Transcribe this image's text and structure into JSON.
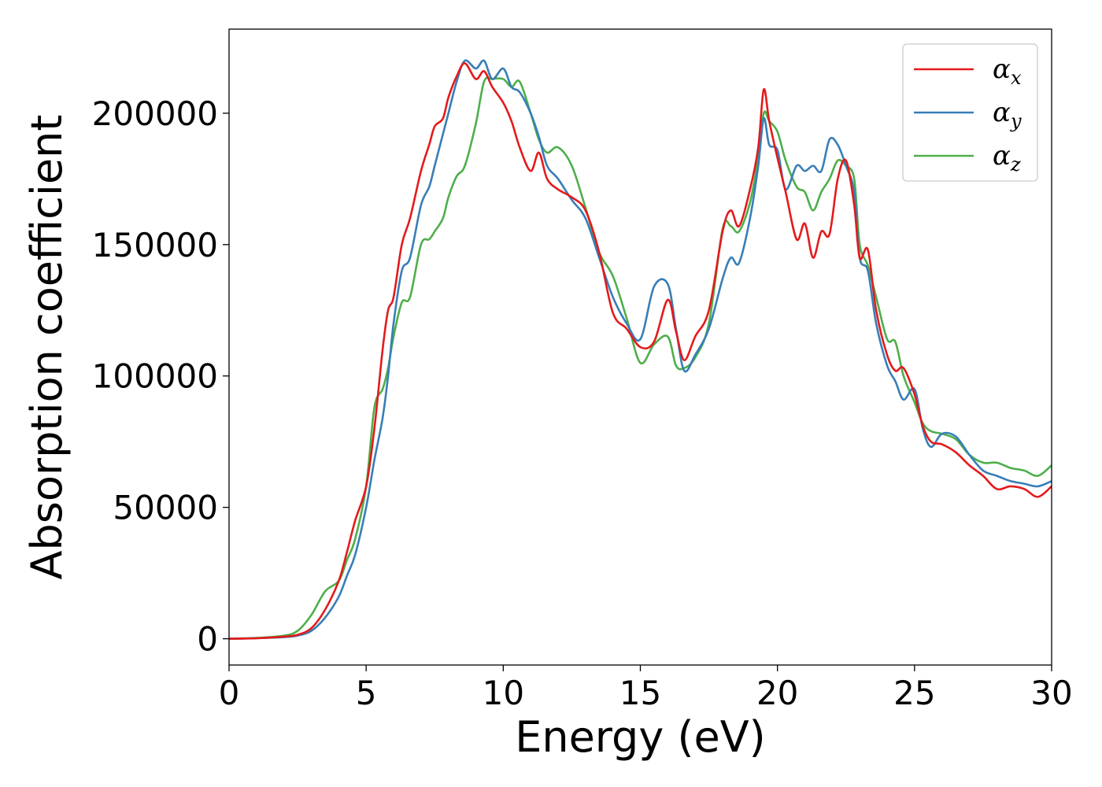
{
  "chart_data": {
    "type": "line",
    "title": "",
    "xlabel": "Energy (eV)",
    "ylabel": "Absorption coefficient",
    "xlim": [
      0,
      30
    ],
    "ylim": [
      -10000,
      232000
    ],
    "xticks": [
      0,
      5,
      10,
      15,
      20,
      25,
      30
    ],
    "xtick_labels": [
      "0",
      "5",
      "10",
      "15",
      "20",
      "25",
      "30"
    ],
    "yticks": [
      0,
      50000,
      100000,
      150000,
      200000
    ],
    "ytick_labels": [
      "0",
      "50000",
      "100000",
      "150000",
      "200000"
    ],
    "grid": false,
    "legend_position": "top-right",
    "series": [
      {
        "name": "αx",
        "symbol": "α",
        "subscript": "x",
        "color": "#e41a1c",
        "x": [
          0,
          1,
          2,
          2.5,
          3,
          3.5,
          4,
          4.3,
          4.6,
          5,
          5.3,
          5.6,
          5.8,
          6,
          6.3,
          6.6,
          7,
          7.3,
          7.5,
          7.8,
          8,
          8.3,
          8.6,
          9,
          9.3,
          9.6,
          10,
          10.3,
          10.6,
          11,
          11.3,
          11.6,
          12,
          12.5,
          13,
          13.5,
          14,
          14.5,
          15,
          15.5,
          16,
          16.3,
          16.6,
          17,
          17.5,
          18,
          18.3,
          18.6,
          19,
          19.3,
          19.5,
          19.7,
          20,
          20.3,
          20.7,
          21,
          21.3,
          21.6,
          21.9,
          22.2,
          22.5,
          22.8,
          23,
          23.3,
          23.6,
          24,
          24.3,
          24.6,
          25,
          25.3,
          25.6,
          26,
          26.5,
          27,
          27.5,
          28,
          28.5,
          29,
          29.5,
          30
        ],
        "y": [
          0,
          200,
          800,
          1500,
          4000,
          11000,
          22000,
          33000,
          45000,
          58000,
          80000,
          110000,
          125000,
          130000,
          150000,
          160000,
          178000,
          188000,
          195000,
          198000,
          206000,
          214000,
          219000,
          213000,
          216000,
          210000,
          204000,
          197000,
          187000,
          178000,
          185000,
          175000,
          171000,
          168000,
          163000,
          147000,
          124000,
          118000,
          111000,
          113000,
          129000,
          117000,
          106000,
          115000,
          125000,
          155000,
          163000,
          157000,
          171000,
          187000,
          209000,
          197000,
          183000,
          170000,
          152000,
          158000,
          145000,
          155000,
          154000,
          175000,
          182000,
          165000,
          145000,
          148000,
          125000,
          108000,
          102000,
          103000,
          93000,
          81000,
          75000,
          74000,
          71000,
          66000,
          62000,
          57000,
          58000,
          57000,
          54000,
          58000
        ]
      },
      {
        "name": "αy",
        "symbol": "α",
        "subscript": "y",
        "color": "#377eb8",
        "x": [
          0,
          1,
          2,
          2.5,
          3,
          3.5,
          4,
          4.3,
          4.6,
          5,
          5.3,
          5.6,
          5.8,
          6,
          6.3,
          6.6,
          7,
          7.3,
          7.5,
          7.8,
          8,
          8.3,
          8.6,
          9,
          9.3,
          9.6,
          10,
          10.3,
          10.6,
          11,
          11.3,
          11.6,
          12,
          12.5,
          13,
          13.5,
          14,
          14.5,
          15,
          15.5,
          16,
          16.3,
          16.6,
          17,
          17.5,
          18,
          18.3,
          18.6,
          19,
          19.3,
          19.5,
          19.7,
          20,
          20.3,
          20.7,
          21,
          21.3,
          21.6,
          21.9,
          22.2,
          22.5,
          22.8,
          23,
          23.3,
          23.6,
          24,
          24.3,
          24.6,
          25,
          25.3,
          25.6,
          26,
          26.5,
          27,
          27.5,
          28,
          28.5,
          29,
          29.5,
          30
        ],
        "y": [
          0,
          200,
          600,
          1200,
          3000,
          8000,
          16000,
          24000,
          32000,
          50000,
          68000,
          84000,
          100000,
          120000,
          140000,
          145000,
          165000,
          172000,
          180000,
          192000,
          200000,
          212000,
          220000,
          217000,
          220000,
          213000,
          217000,
          210000,
          208000,
          200000,
          191000,
          180000,
          175000,
          167000,
          160000,
          145000,
          130000,
          120000,
          114000,
          134000,
          135000,
          118000,
          102000,
          108000,
          118000,
          137000,
          145000,
          143000,
          160000,
          180000,
          198000,
          188000,
          186000,
          171000,
          180000,
          178000,
          180000,
          178000,
          190000,
          188000,
          180000,
          170000,
          145000,
          140000,
          120000,
          104000,
          98000,
          91000,
          95000,
          80000,
          73000,
          78000,
          77000,
          70000,
          64000,
          62000,
          60000,
          59000,
          58000,
          60000
        ]
      },
      {
        "name": "αz",
        "symbol": "α",
        "subscript": "z",
        "color": "#4daf4a",
        "x": [
          0,
          1,
          2,
          2.5,
          3,
          3.5,
          4,
          4.3,
          4.6,
          5,
          5.3,
          5.6,
          5.8,
          6,
          6.3,
          6.6,
          7,
          7.3,
          7.5,
          7.8,
          8,
          8.3,
          8.6,
          9,
          9.3,
          9.6,
          10,
          10.3,
          10.6,
          11,
          11.3,
          11.6,
          12,
          12.5,
          13,
          13.5,
          14,
          14.5,
          15,
          15.5,
          16,
          16.3,
          16.6,
          17,
          17.5,
          18,
          18.3,
          18.6,
          19,
          19.3,
          19.5,
          19.7,
          20,
          20.3,
          20.7,
          21,
          21.3,
          21.6,
          21.9,
          22.2,
          22.5,
          22.8,
          23,
          23.3,
          23.6,
          24,
          24.3,
          24.6,
          25,
          25.3,
          25.6,
          26,
          26.5,
          27,
          27.5,
          28,
          28.5,
          29,
          29.5,
          30
        ],
        "y": [
          0,
          300,
          1200,
          3000,
          9000,
          18000,
          22000,
          30000,
          38000,
          58000,
          88000,
          95000,
          103000,
          115000,
          128000,
          130000,
          150000,
          152000,
          155000,
          160000,
          168000,
          176000,
          180000,
          196000,
          212000,
          213000,
          213000,
          210000,
          212000,
          200000,
          190000,
          185000,
          187000,
          180000,
          164000,
          147000,
          138000,
          122000,
          105000,
          112000,
          115000,
          104000,
          103000,
          107000,
          120000,
          156000,
          157000,
          155000,
          166000,
          183000,
          200000,
          197000,
          193000,
          182000,
          172000,
          170000,
          163000,
          170000,
          175000,
          182000,
          180000,
          175000,
          150000,
          142000,
          130000,
          114000,
          113000,
          100000,
          90000,
          82000,
          79000,
          78000,
          76000,
          70000,
          67000,
          67000,
          65000,
          64000,
          62000,
          66000
        ]
      }
    ]
  }
}
